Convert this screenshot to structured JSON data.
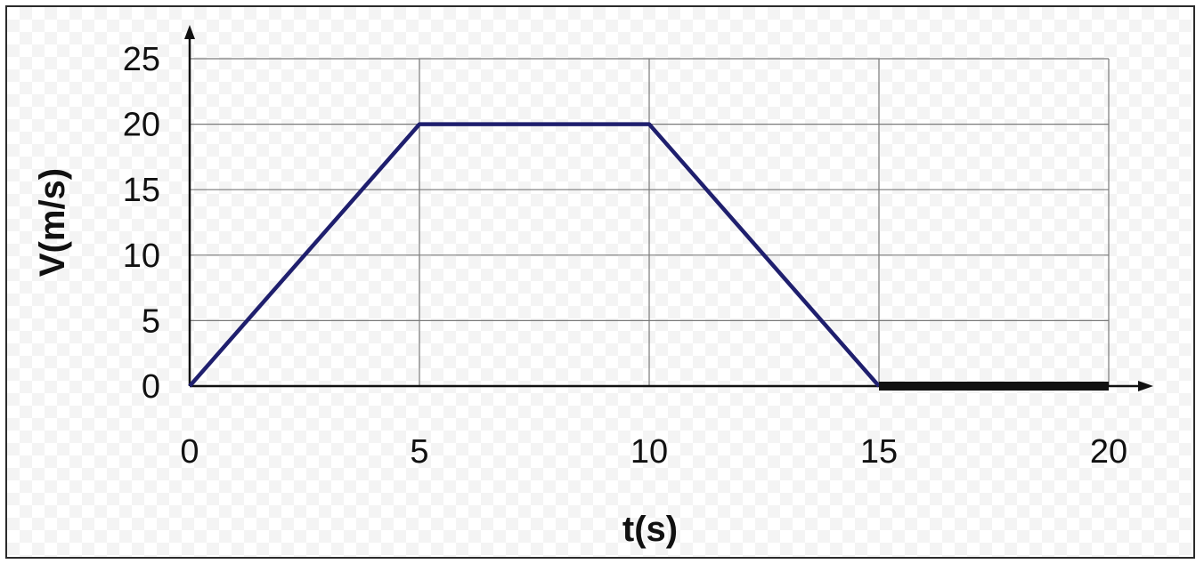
{
  "chart_data": {
    "type": "line",
    "title": "",
    "xlabel": "t(s)",
    "ylabel": "V(m/s)",
    "xlim": [
      0,
      20
    ],
    "ylim": [
      0,
      25
    ],
    "xticks": [
      "0",
      "5",
      "10",
      "15",
      "20"
    ],
    "yticks": [
      "0",
      "5",
      "10",
      "15",
      "20",
      "25"
    ],
    "grid": true,
    "series": [
      {
        "x": [
          0,
          5,
          10,
          15
        ],
        "y": [
          0,
          20,
          20,
          0
        ],
        "color": "#1f1f6e"
      },
      {
        "x": [
          15,
          20
        ],
        "y": [
          0,
          0
        ],
        "color": "#111111"
      }
    ]
  }
}
